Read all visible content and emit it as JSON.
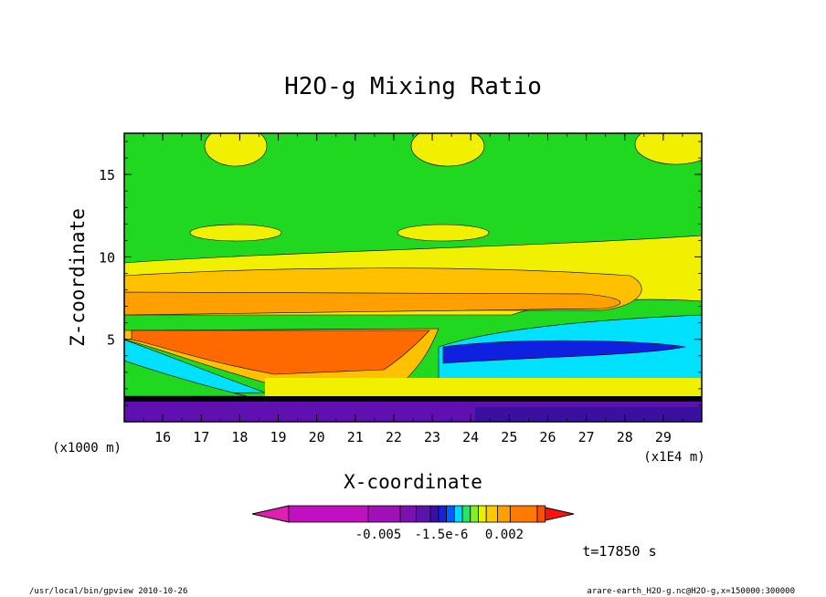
{
  "chart_data": {
    "type": "heatmap",
    "title": "H2O-g Mixing Ratio",
    "xlabel": "X-coordinate",
    "ylabel": "Z-coordinate",
    "x_unit_label": "(x1E4 m)",
    "y_unit_label": "(x1000 m)",
    "x_ticks": [
      "16",
      "17",
      "18",
      "19",
      "20",
      "21",
      "22",
      "23",
      "24",
      "25",
      "26",
      "27",
      "28",
      "29"
    ],
    "y_ticks": [
      "5",
      "10",
      "15"
    ],
    "xlim": [
      15,
      30
    ],
    "ylim": [
      0,
      17.5
    ],
    "colorbar": {
      "tick_labels": [
        "-0.005",
        "-1.5e-6",
        "0.002"
      ],
      "colors": [
        "#e01fb0",
        "#c010c0",
        "#a010b8",
        "#7d10b0",
        "#5a14a8",
        "#3a10a0",
        "#1a20d8",
        "#0060ff",
        "#00d8ff",
        "#20e860",
        "#80f020",
        "#e8f000",
        "#ffc800",
        "#ffa000",
        "#ff7a00",
        "#ff5000",
        "#ff1010"
      ]
    },
    "bands": [
      {
        "name": "upper green",
        "z": [
          10,
          17.5
        ],
        "color": "#20d820"
      },
      {
        "name": "yellow",
        "z": [
          9,
          10
        ],
        "color": "#f0f000"
      },
      {
        "name": "orange",
        "z": [
          8,
          9
        ],
        "color": "#ffc000"
      },
      {
        "name": "dark orange",
        "z": [
          5.5,
          8
        ],
        "color": "#ffa000"
      },
      {
        "name": "red-orange",
        "z": [
          3,
          5.5
        ],
        "color": "#ff6a00"
      },
      {
        "name": "cyan",
        "z": [
          2,
          5
        ],
        "color": "#00e0ff"
      },
      {
        "name": "blue",
        "z": [
          1.5,
          2
        ],
        "color": "#1020e0"
      },
      {
        "name": "purple",
        "z": [
          0,
          1.5
        ],
        "color": "#6010b0"
      }
    ],
    "time_label": "t=17850 s"
  },
  "footer": {
    "left": "/usr/local/bin/gpview  2010-10-26",
    "right": "arare-earth_H2O-g.nc@H2O-g,x=150000:300000"
  }
}
